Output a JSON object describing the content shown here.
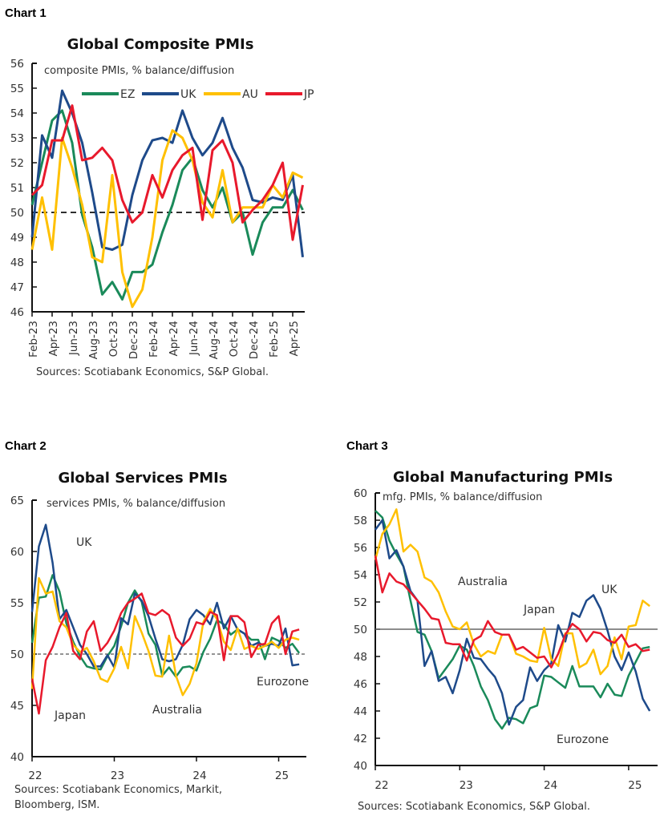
{
  "labels": [
    "Chart 1",
    "Chart 2",
    "Chart 3"
  ],
  "colors": {
    "EZ": "#1a8a5a",
    "UK": "#1e4a8a",
    "AU": "#ffc000",
    "JP": "#e8192c"
  },
  "chart_data": [
    {
      "type": "line",
      "title": "Global Composite PMIs",
      "subtitle": "composite PMIs, % balance/diffusion",
      "source": "Sources: Scotiabank Economics, S&P Global.",
      "ylim": [
        46,
        56
      ],
      "yticks": [
        46,
        47,
        48,
        49,
        50,
        51,
        52,
        53,
        54,
        55,
        56
      ],
      "reference_line": 50,
      "x": [
        "Jan-23",
        "Feb-23",
        "Mar-23",
        "Apr-23",
        "May-23",
        "Jun-23",
        "Jul-23",
        "Aug-23",
        "Sep-23",
        "Oct-23",
        "Nov-23",
        "Dec-23",
        "Jan-24",
        "Feb-24",
        "Mar-24",
        "Apr-24",
        "May-24",
        "Jun-24",
        "Jul-24",
        "Aug-24",
        "Sep-24",
        "Oct-24",
        "Nov-24",
        "Dec-24",
        "Jan-25",
        "Feb-25",
        "Mar-25",
        "Apr-25"
      ],
      "xtick_labels": [
        "Feb-23",
        "Apr-23",
        "Jun-23",
        "Aug-23",
        "Oct-23",
        "Dec-23",
        "Feb-24",
        "Apr-24",
        "Jun-24",
        "Aug-24",
        "Oct-24",
        "Dec-24",
        "Feb-25",
        "Apr-25"
      ],
      "legend": "top",
      "series": [
        {
          "name": "EZ",
          "values": [
            50.3,
            52.0,
            53.7,
            54.1,
            52.8,
            49.9,
            48.6,
            46.7,
            47.2,
            46.5,
            47.6,
            47.6,
            47.9,
            49.2,
            50.3,
            51.7,
            52.2,
            50.9,
            50.2,
            51.0,
            49.6,
            50.0,
            48.3,
            49.6,
            50.2,
            50.2,
            50.9,
            50.1
          ]
        },
        {
          "name": "UK",
          "values": [
            49.0,
            53.1,
            52.2,
            54.9,
            54.0,
            52.8,
            50.8,
            48.6,
            48.5,
            48.7,
            50.7,
            52.1,
            52.9,
            53.0,
            52.8,
            54.1,
            53.0,
            52.3,
            52.8,
            53.8,
            52.6,
            51.8,
            50.5,
            50.4,
            50.6,
            50.5,
            51.5,
            48.2
          ]
        },
        {
          "name": "AU",
          "values": [
            48.5,
            50.6,
            48.5,
            53.0,
            51.8,
            50.3,
            48.2,
            48.0,
            51.5,
            47.6,
            46.2,
            46.9,
            49.0,
            52.1,
            53.3,
            53.0,
            52.1,
            50.4,
            49.8,
            51.7,
            49.6,
            50.2,
            50.2,
            50.2,
            51.1,
            50.6,
            51.6,
            51.4
          ]
        },
        {
          "name": "JP",
          "values": [
            50.7,
            51.1,
            52.9,
            52.9,
            54.3,
            52.1,
            52.2,
            52.6,
            52.1,
            50.5,
            49.6,
            50.0,
            51.5,
            50.6,
            51.7,
            52.3,
            52.6,
            49.7,
            52.5,
            52.9,
            52.0,
            49.6,
            50.1,
            50.5,
            51.1,
            52.0,
            48.9,
            51.1
          ]
        }
      ]
    },
    {
      "type": "line",
      "title": "Global Services PMIs",
      "subtitle": "services PMIs, % balance/diffusion",
      "source_lines": [
        "Sources: Scotiabank Economics, Markit,",
        "Bloomberg, ISM."
      ],
      "ylim": [
        40,
        65
      ],
      "yticks": [
        40,
        45,
        50,
        55,
        60,
        65
      ],
      "xticks": [
        "22",
        "23",
        "24",
        "25"
      ],
      "reference_line": 50,
      "series_labels": {
        "UK": "UK",
        "JP": "Japan",
        "AU": "Australia",
        "EZ": "Eurozone"
      },
      "series": [
        {
          "name": "EZ",
          "values": [
            51.1,
            55.5,
            55.6,
            57.7,
            56.1,
            53.0,
            51.2,
            49.8,
            48.8,
            48.6,
            48.5,
            49.8,
            50.8,
            52.7,
            55.0,
            56.2,
            55.1,
            52.0,
            50.9,
            47.9,
            48.7,
            47.8,
            48.7,
            48.8,
            48.4,
            50.2,
            51.5,
            53.3,
            52.9,
            51.9,
            52.4,
            52.0,
            51.4,
            51.4,
            49.5,
            51.6,
            51.3,
            50.6,
            51.0,
            50.1
          ]
        },
        {
          "name": "UK",
          "values": [
            54.1,
            60.5,
            62.6,
            58.9,
            53.4,
            54.3,
            52.6,
            50.9,
            50.0,
            48.8,
            48.8,
            49.9,
            48.7,
            53.5,
            52.9,
            55.9,
            55.2,
            53.7,
            51.5,
            49.5,
            49.3,
            49.5,
            50.9,
            53.4,
            54.3,
            53.8,
            52.9,
            55.0,
            52.5,
            53.7,
            52.4,
            52.0,
            50.8,
            51.1,
            50.8,
            51.0,
            50.8,
            52.5,
            48.9,
            49.0
          ]
        },
        {
          "name": "AU",
          "values": [
            46.6,
            57.4,
            55.9,
            56.1,
            53.2,
            52.6,
            50.9,
            50.2,
            50.6,
            49.3,
            47.6,
            47.3,
            48.6,
            50.7,
            48.6,
            53.7,
            52.1,
            50.3,
            47.9,
            47.8,
            51.8,
            47.9,
            46.0,
            47.1,
            49.1,
            53.1,
            54.4,
            53.4,
            51.2,
            50.4,
            52.5,
            50.5,
            50.8,
            50.5,
            50.8,
            51.2,
            50.6,
            51.4,
            51.6,
            51.4
          ]
        },
        {
          "name": "JP",
          "values": [
            47.6,
            44.2,
            49.4,
            50.7,
            52.6,
            54.0,
            50.3,
            49.5,
            52.2,
            53.2,
            50.3,
            51.1,
            52.3,
            54.0,
            55.0,
            55.4,
            55.9,
            54.0,
            53.8,
            54.3,
            53.8,
            51.6,
            50.8,
            51.5,
            53.1,
            52.9,
            54.1,
            53.8,
            49.4,
            53.7,
            53.7,
            53.1,
            49.7,
            50.9,
            51.0,
            53.0,
            53.7,
            50.0,
            52.2,
            52.4
          ]
        }
      ]
    },
    {
      "type": "line",
      "title": "Global Manufacturing PMIs",
      "subtitle": "mfg. PMIs, % balance/diffusion",
      "source": "Sources: Scotiabank Economics, S&P Global.",
      "ylim": [
        40,
        60
      ],
      "yticks": [
        40,
        42,
        44,
        46,
        48,
        50,
        52,
        54,
        56,
        58,
        60
      ],
      "xticks": [
        "22",
        "23",
        "24",
        "25"
      ],
      "reference_line": 50,
      "series_labels": {
        "AU": "Australia",
        "JP": "Japan",
        "UK": "UK",
        "EZ": "Eurozone"
      },
      "series": [
        {
          "name": "EZ",
          "values": [
            58.7,
            58.2,
            56.5,
            55.5,
            54.6,
            52.1,
            49.8,
            49.6,
            48.4,
            46.4,
            47.1,
            47.8,
            48.8,
            48.5,
            47.3,
            45.8,
            44.8,
            43.4,
            42.7,
            43.5,
            43.4,
            43.1,
            44.2,
            44.4,
            46.6,
            46.5,
            46.1,
            45.7,
            47.3,
            45.8,
            45.8,
            45.8,
            45.0,
            46.0,
            45.2,
            45.1,
            46.6,
            47.6,
            48.6,
            48.7
          ]
        },
        {
          "name": "UK",
          "values": [
            57.3,
            58.0,
            55.2,
            55.8,
            54.6,
            52.8,
            52.1,
            47.3,
            48.4,
            46.2,
            46.5,
            45.3,
            47.0,
            49.3,
            47.9,
            47.8,
            47.1,
            46.5,
            45.3,
            43.0,
            44.3,
            44.8,
            47.2,
            46.2,
            47.0,
            47.5,
            50.3,
            49.1,
            51.2,
            50.9,
            52.1,
            52.5,
            51.5,
            49.9,
            48.0,
            47.0,
            48.3,
            46.9,
            44.9,
            44.0
          ]
        },
        {
          "name": "AU",
          "values": [
            55.1,
            57.0,
            57.7,
            58.8,
            55.7,
            56.2,
            55.7,
            53.8,
            53.5,
            52.7,
            51.3,
            50.2,
            50.0,
            50.5,
            48.9,
            48.0,
            48.4,
            48.2,
            49.6,
            49.6,
            48.2,
            48.0,
            47.7,
            47.6,
            50.1,
            47.8,
            47.3,
            49.7,
            49.7,
            47.2,
            47.5,
            48.5,
            46.7,
            47.3,
            49.4,
            47.8,
            50.2,
            50.3,
            52.1,
            51.7
          ]
        },
        {
          "name": "JP",
          "values": [
            55.4,
            52.7,
            54.1,
            53.5,
            53.3,
            52.7,
            52.1,
            51.5,
            50.8,
            50.7,
            49.0,
            48.9,
            48.9,
            47.7,
            49.2,
            49.5,
            50.6,
            49.8,
            49.6,
            49.6,
            48.5,
            48.7,
            48.3,
            47.9,
            48.0,
            47.2,
            48.2,
            49.6,
            50.4,
            50.0,
            49.1,
            49.8,
            49.7,
            49.2,
            49.0,
            49.6,
            48.7,
            48.9,
            48.4,
            48.5
          ]
        }
      ]
    }
  ]
}
